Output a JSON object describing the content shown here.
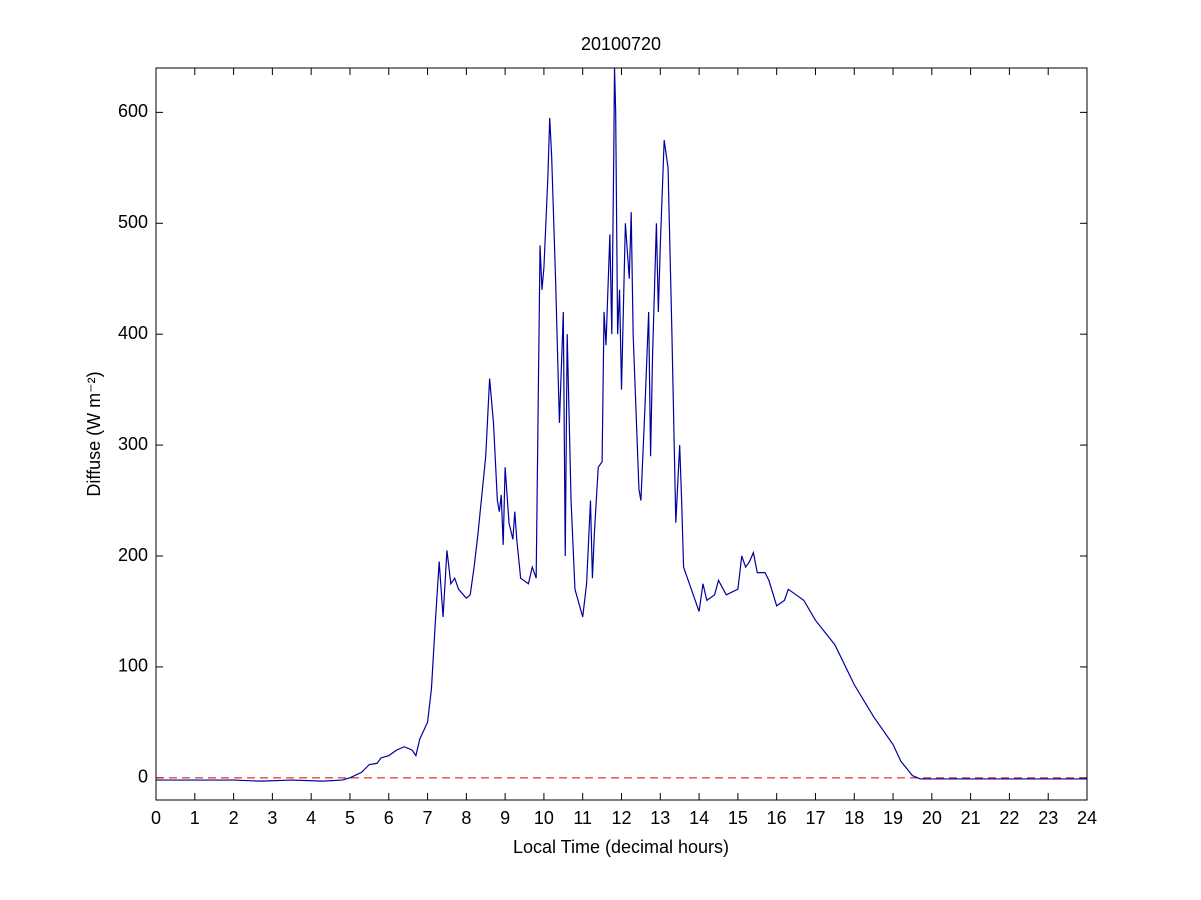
{
  "chart_data": {
    "type": "line",
    "title": "20100720",
    "xlabel": "Local Time (decimal hours)",
    "ylabel": "Diffuse (W m⁻²)",
    "xlim": [
      0,
      24
    ],
    "xticks": [
      0,
      1,
      2,
      3,
      4,
      5,
      6,
      7,
      8,
      9,
      10,
      11,
      12,
      13,
      14,
      15,
      16,
      17,
      18,
      19,
      20,
      21,
      22,
      23,
      24
    ],
    "ylim": [
      -20,
      640
    ],
    "yticks": [
      0,
      100,
      200,
      300,
      400,
      500,
      600
    ],
    "grid": false,
    "reference_line": {
      "value": 0,
      "color": "#dd0000",
      "style": "dashed"
    },
    "series": [
      {
        "color": "#00009f",
        "x": [
          0,
          1,
          2,
          2.7,
          3.5,
          4.3,
          4.8,
          5.0,
          5.3,
          5.5,
          5.7,
          5.8,
          6.0,
          6.2,
          6.4,
          6.6,
          6.7,
          6.8,
          7.0,
          7.1,
          7.2,
          7.3,
          7.4,
          7.5,
          7.6,
          7.7,
          7.8,
          8.0,
          8.1,
          8.2,
          8.3,
          8.5,
          8.6,
          8.7,
          8.8,
          8.85,
          8.9,
          8.95,
          9.0,
          9.1,
          9.2,
          9.25,
          9.3,
          9.4,
          9.6,
          9.7,
          9.8,
          9.9,
          9.95,
          10.0,
          10.1,
          10.15,
          10.2,
          10.3,
          10.4,
          10.5,
          10.55,
          10.6,
          10.7,
          10.8,
          11.0,
          11.1,
          11.2,
          11.25,
          11.3,
          11.4,
          11.5,
          11.55,
          11.6,
          11.7,
          11.75,
          11.8,
          11.82,
          11.85,
          11.9,
          11.95,
          12.0,
          12.1,
          12.2,
          12.25,
          12.3,
          12.45,
          12.5,
          12.6,
          12.7,
          12.75,
          12.8,
          12.9,
          12.95,
          13.0,
          13.1,
          13.2,
          13.3,
          13.4,
          13.5,
          13.55,
          13.6,
          13.7,
          13.8,
          14.0,
          14.1,
          14.2,
          14.4,
          14.5,
          14.7,
          15.0,
          15.1,
          15.2,
          15.3,
          15.4,
          15.5,
          15.7,
          15.8,
          16.0,
          16.2,
          16.3,
          16.5,
          16.7,
          17.0,
          17.5,
          18.0,
          18.5,
          19.0,
          19.2,
          19.5,
          19.7,
          20,
          22,
          24
        ],
        "values": [
          -2,
          -2,
          -2,
          -3,
          -2,
          -3,
          -2,
          0,
          5,
          12,
          13,
          18,
          20,
          25,
          28,
          25,
          20,
          35,
          50,
          80,
          140,
          195,
          145,
          205,
          175,
          180,
          170,
          162,
          165,
          190,
          220,
          290,
          360,
          320,
          250,
          240,
          255,
          210,
          280,
          230,
          215,
          240,
          215,
          180,
          175,
          190,
          180,
          480,
          440,
          460,
          540,
          595,
          560,
          450,
          320,
          420,
          200,
          400,
          250,
          170,
          145,
          175,
          250,
          180,
          220,
          280,
          285,
          420,
          390,
          490,
          400,
          560,
          640,
          600,
          400,
          440,
          350,
          500,
          450,
          510,
          400,
          260,
          250,
          330,
          420,
          290,
          380,
          500,
          420,
          480,
          575,
          550,
          400,
          230,
          300,
          250,
          190,
          180,
          170,
          150,
          175,
          160,
          165,
          178,
          165,
          170,
          200,
          190,
          195,
          203,
          185,
          185,
          178,
          155,
          160,
          170,
          165,
          160,
          142,
          120,
          84,
          55,
          30,
          15,
          2,
          -1,
          -1,
          -1,
          -1
        ]
      }
    ]
  }
}
